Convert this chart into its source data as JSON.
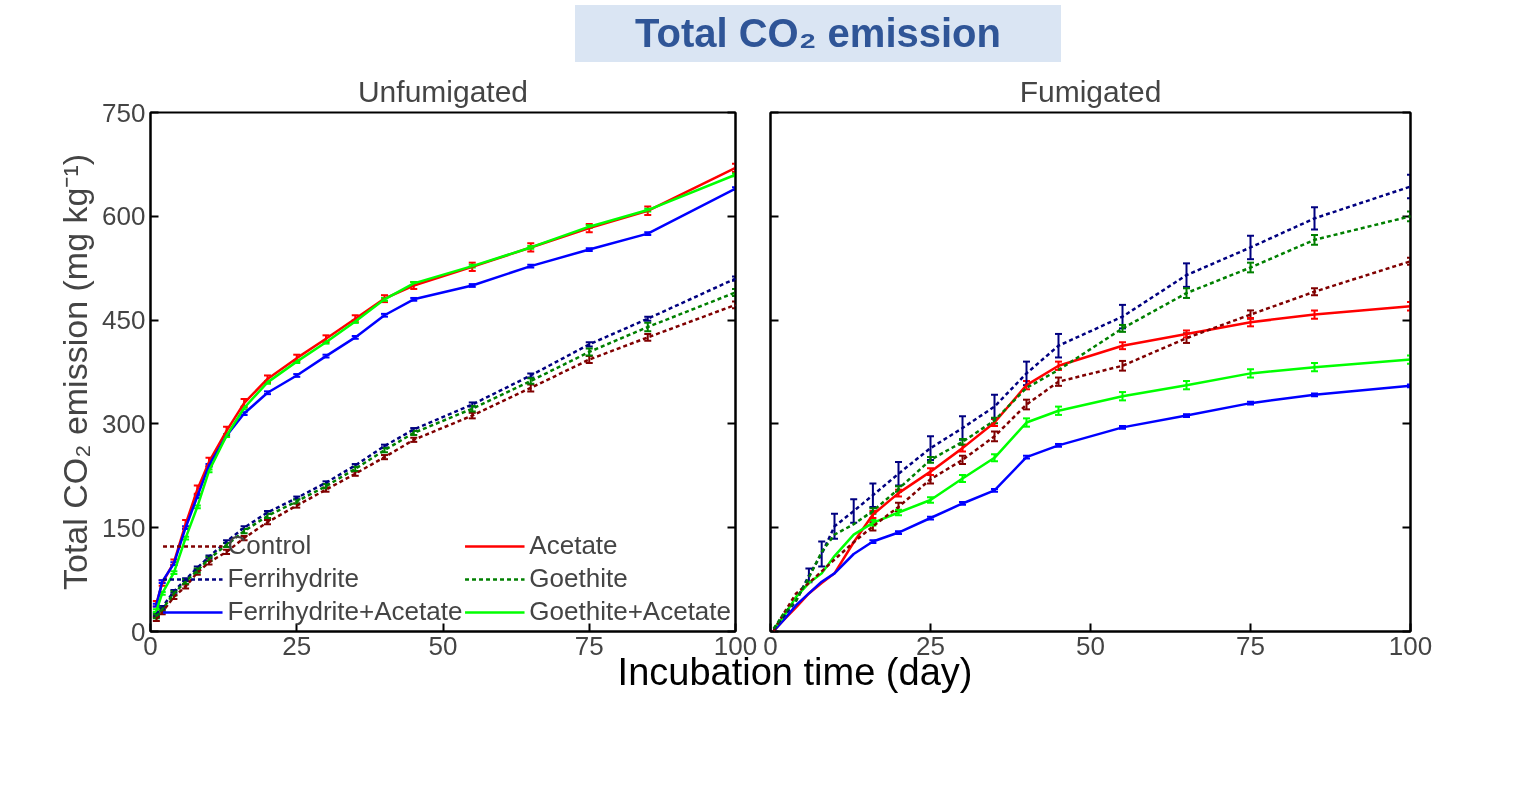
{
  "chart_data": [
    {
      "type": "line",
      "title": "Unfumigated",
      "ylabel": "Total CO₂ emission (mg kg⁻¹)",
      "xlabel": "Incubation time (day)",
      "annotations": [
        "Total CO₂ emission"
      ],
      "x": [
        1,
        2,
        4,
        6,
        8,
        10,
        13,
        16,
        20,
        25,
        30,
        35,
        40,
        45,
        55,
        65,
        75,
        85,
        100
      ],
      "xlim": [
        0,
        100
      ],
      "xticks": [
        0,
        25,
        50,
        75,
        100
      ],
      "ylim": [
        0,
        750
      ],
      "yticks": [
        0,
        150,
        300,
        450,
        600,
        750
      ],
      "grid": false,
      "legend": "bottom right",
      "marker": "none",
      "series": [
        {
          "name": "Control",
          "color": "#800000",
          "line_style": "dashed",
          "values": [
            18,
            28,
            50,
            65,
            85,
            100,
            115,
            135,
            158,
            182,
            205,
            228,
            252,
            277,
            312,
            352,
            393,
            425,
            472
          ],
          "errors": [
            3,
            3,
            3,
            3,
            3,
            3,
            3,
            3,
            3,
            3,
            3,
            3,
            3,
            3,
            4,
            5,
            5,
            5,
            5
          ]
        },
        {
          "name": "Acetate",
          "color": "#ff0000",
          "line_style": "solid",
          "values": [
            40,
            70,
            100,
            155,
            205,
            245,
            290,
            330,
            365,
            395,
            423,
            452,
            481,
            500,
            527,
            555,
            583,
            608,
            670
          ],
          "errors": [
            4,
            4,
            4,
            6,
            6,
            6,
            6,
            6,
            5,
            5,
            5,
            5,
            5,
            5,
            6,
            6,
            6,
            6,
            6
          ]
        },
        {
          "name": "Ferrihydrite",
          "color": "#000080",
          "line_style": "dashed",
          "values": [
            25,
            35,
            58,
            75,
            92,
            108,
            130,
            150,
            172,
            193,
            215,
            240,
            268,
            292,
            328,
            370,
            415,
            452,
            510
          ],
          "errors": [
            2,
            2,
            2,
            2,
            2,
            2,
            2,
            2,
            2,
            2,
            2,
            2,
            2,
            2,
            3,
            3,
            3,
            3,
            3
          ]
        },
        {
          "name": "Goethite",
          "color": "#008000",
          "line_style": "dashed",
          "values": [
            22,
            32,
            55,
            72,
            88,
            105,
            125,
            145,
            167,
            188,
            210,
            235,
            262,
            287,
            322,
            362,
            404,
            440,
            490
          ],
          "errors": [
            3,
            3,
            3,
            3,
            3,
            3,
            3,
            3,
            3,
            3,
            3,
            3,
            3,
            3,
            4,
            4,
            5,
            6,
            5
          ]
        },
        {
          "name": "Ferrihydrite+Acetate",
          "color": "#0000ff",
          "line_style": "solid",
          "values": [
            38,
            72,
            98,
            150,
            195,
            240,
            283,
            315,
            345,
            370,
            398,
            425,
            457,
            480,
            500,
            528,
            552,
            575,
            640
          ],
          "errors": [
            2,
            2,
            2,
            2,
            2,
            2,
            2,
            2,
            2,
            2,
            2,
            2,
            2,
            2,
            2,
            2,
            2,
            2,
            2
          ]
        },
        {
          "name": "Goethite+Acetate",
          "color": "#00ff00",
          "line_style": "solid",
          "values": [
            30,
            55,
            85,
            135,
            180,
            232,
            283,
            323,
            360,
            390,
            418,
            448,
            480,
            503,
            528,
            555,
            585,
            609,
            660
          ],
          "errors": [
            2,
            2,
            2,
            2,
            2,
            2,
            2,
            2,
            2,
            2,
            2,
            2,
            2,
            2,
            2,
            2,
            2,
            2,
            2
          ]
        }
      ]
    },
    {
      "type": "line",
      "title": "Fumigated",
      "x": [
        0.5,
        2,
        4,
        6,
        8,
        10,
        13,
        16,
        20,
        25,
        30,
        35,
        40,
        45,
        55,
        65,
        75,
        85,
        100
      ],
      "xlim": [
        0,
        100
      ],
      "xticks": [
        0,
        25,
        50,
        75,
        100
      ],
      "ylim": [
        0,
        750
      ],
      "yticks": [
        0,
        150,
        300,
        450,
        600,
        750
      ],
      "tick_labels": "x",
      "grid": false,
      "legend": false,
      "marker": "none",
      "series": [
        {
          "color": "#800000",
          "line_style": "dashed",
          "values": [
            1,
            25,
            55,
            70,
            87,
            104,
            129,
            152,
            180,
            220,
            248,
            282,
            328,
            361,
            384,
            424,
            458,
            491,
            535
          ],
          "errors": [
            null,
            null,
            null,
            null,
            null,
            null,
            null,
            6,
            6,
            6,
            6,
            7,
            7,
            6,
            7,
            7,
            6,
            5,
            5
          ]
        },
        {
          "color": "#ff0000",
          "line_style": "solid",
          "values": [
            1,
            16,
            35,
            55,
            70,
            84,
            129,
            169,
            200,
            231,
            265,
            302,
            356,
            384,
            413,
            430,
            447,
            458,
            470
          ],
          "errors": [
            null,
            null,
            null,
            null,
            null,
            null,
            null,
            5,
            5,
            5,
            5,
            5,
            6,
            6,
            5,
            5,
            6,
            6,
            6
          ]
        },
        {
          "color": "#000080",
          "line_style": "dashed",
          "values": [
            4,
            21,
            44,
            81,
            112,
            152,
            174,
            197,
            228,
            265,
            294,
            325,
            373,
            413,
            455,
            515,
            555,
            597,
            643
          ],
          "errors": [
            null,
            null,
            null,
            10,
            18,
            18,
            17,
            17,
            17,
            17,
            17,
            17,
            17,
            17,
            17,
            17,
            17,
            16,
            17
          ]
        },
        {
          "color": "#008000",
          "line_style": "dashed",
          "values": [
            4,
            25,
            45,
            78,
            115,
            140,
            155,
            174,
            206,
            248,
            274,
            305,
            352,
            378,
            438,
            489,
            526,
            566,
            600
          ],
          "errors": [
            null,
            null,
            null,
            null,
            null,
            null,
            null,
            4,
            4,
            4,
            4,
            4,
            null,
            null,
            5,
            7,
            7,
            7,
            7
          ]
        },
        {
          "color": "#0000ff",
          "line_style": "solid",
          "values": [
            1,
            16,
            38,
            55,
            72,
            84,
            112,
            130,
            143,
            164,
            185,
            204,
            252,
            269,
            295,
            312,
            330,
            342,
            355
          ],
          "errors": [
            null,
            null,
            null,
            null,
            null,
            null,
            null,
            2,
            2,
            2,
            2,
            2,
            2,
            2,
            2,
            2,
            2,
            2,
            2
          ]
        },
        {
          "color": "#00ff00",
          "line_style": "solid",
          "values": [
            4,
            21,
            50,
            70,
            84,
            109,
            140,
            157,
            172,
            190,
            221,
            251,
            302,
            319,
            340,
            356,
            373,
            382,
            393
          ],
          "errors": [
            null,
            null,
            null,
            null,
            null,
            null,
            null,
            4,
            4,
            4,
            5,
            5,
            6,
            6,
            6,
            6,
            6,
            6,
            6
          ]
        }
      ]
    }
  ]
}
